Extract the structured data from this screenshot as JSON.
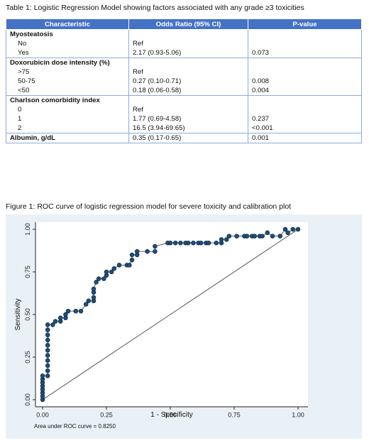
{
  "table": {
    "caption": "Table 1: Logistic Regression Model showing factors associated with any grade ≥3 toxicities",
    "headers": [
      "Characteristic",
      "Odds Ratio (95% CI)",
      "P-value"
    ],
    "rows": [
      {
        "label": "Myosteatosis",
        "heading": true,
        "or": "",
        "p": ""
      },
      {
        "label": "No",
        "heading": false,
        "or": "Ref",
        "p": ""
      },
      {
        "label": "Yes",
        "heading": false,
        "or": "2.17 (0.93-5.06)",
        "p": "0.073"
      },
      {
        "label": "Doxorubicin dose intensity (%)",
        "heading": true,
        "or": "",
        "p": ""
      },
      {
        "label": ">75",
        "heading": false,
        "or": "Ref",
        "p": ""
      },
      {
        "label": "50-75",
        "heading": false,
        "or": "0.27 (0.10-0.71)",
        "p": "0.008"
      },
      {
        "label": "<50",
        "heading": false,
        "or": "0.18 (0.06-0.58)",
        "p": "0.004"
      },
      {
        "label": "Charlson comorbidity index",
        "heading": true,
        "or": "",
        "p": ""
      },
      {
        "label": "0",
        "heading": false,
        "or": "Ref",
        "p": ""
      },
      {
        "label": "1",
        "heading": false,
        "or": "1.77 (0.69-4.58)",
        "p": "0.237"
      },
      {
        "label": "2",
        "heading": false,
        "or": "16.5 (3.94-69.65)",
        "p": "<0.001"
      },
      {
        "label": "Albumin, g/dL",
        "heading": true,
        "or": "0.35 (0.17-0.65)",
        "p": "0.001"
      }
    ]
  },
  "figure": {
    "caption": "Figure 1: ROC curve of logistic regression model for severe toxicity and calibration plot"
  },
  "chart_data": {
    "type": "line",
    "xlabel": "1 - Specificity",
    "ylabel": "Sensitivity",
    "xlim": [
      0,
      1
    ],
    "ylim": [
      0,
      1
    ],
    "x_ticks": [
      "0.00",
      "0.25",
      "0.50",
      "0.75",
      "1.00"
    ],
    "y_ticks": [
      "0.00",
      "0.25",
      "0.50",
      "0.75",
      "1.00"
    ],
    "grid": false,
    "annotation": "Area under ROC curve = 0.8250",
    "colors": {
      "points": "#1f4e79",
      "point_outline": "#0b2540",
      "line": "#444444",
      "panel": "#eaf1f6"
    },
    "reference_line": [
      [
        0,
        0
      ],
      [
        1,
        1
      ]
    ],
    "roc_points": [
      [
        0,
        0
      ],
      [
        0,
        0.02
      ],
      [
        0,
        0.04
      ],
      [
        0,
        0.06
      ],
      [
        0,
        0.08
      ],
      [
        0,
        0.1
      ],
      [
        0,
        0.12
      ],
      [
        0,
        0.14
      ],
      [
        0.02,
        0.14
      ],
      [
        0.02,
        0.17
      ],
      [
        0.02,
        0.2
      ],
      [
        0.02,
        0.23
      ],
      [
        0.02,
        0.26
      ],
      [
        0.02,
        0.29
      ],
      [
        0.02,
        0.32
      ],
      [
        0.02,
        0.35
      ],
      [
        0.02,
        0.38
      ],
      [
        0.02,
        0.41
      ],
      [
        0.02,
        0.44
      ],
      [
        0.04,
        0.44
      ],
      [
        0.05,
        0.46
      ],
      [
        0.07,
        0.46
      ],
      [
        0.07,
        0.48
      ],
      [
        0.09,
        0.48
      ],
      [
        0.09,
        0.5
      ],
      [
        0.1,
        0.52
      ],
      [
        0.13,
        0.52
      ],
      [
        0.15,
        0.52
      ],
      [
        0.17,
        0.56
      ],
      [
        0.18,
        0.58
      ],
      [
        0.2,
        0.58
      ],
      [
        0.2,
        0.6
      ],
      [
        0.2,
        0.63
      ],
      [
        0.2,
        0.65
      ],
      [
        0.21,
        0.69
      ],
      [
        0.22,
        0.71
      ],
      [
        0.24,
        0.71
      ],
      [
        0.25,
        0.73
      ],
      [
        0.25,
        0.75
      ],
      [
        0.27,
        0.75
      ],
      [
        0.28,
        0.77
      ],
      [
        0.3,
        0.79
      ],
      [
        0.33,
        0.79
      ],
      [
        0.34,
        0.79
      ],
      [
        0.35,
        0.82
      ],
      [
        0.35,
        0.85
      ],
      [
        0.37,
        0.85
      ],
      [
        0.37,
        0.87
      ],
      [
        0.41,
        0.87
      ],
      [
        0.44,
        0.87
      ],
      [
        0.44,
        0.9
      ],
      [
        0.49,
        0.92
      ],
      [
        0.5,
        0.92
      ],
      [
        0.52,
        0.92
      ],
      [
        0.54,
        0.92
      ],
      [
        0.56,
        0.92
      ],
      [
        0.57,
        0.92
      ],
      [
        0.59,
        0.92
      ],
      [
        0.61,
        0.92
      ],
      [
        0.62,
        0.92
      ],
      [
        0.64,
        0.92
      ],
      [
        0.65,
        0.92
      ],
      [
        0.68,
        0.92
      ],
      [
        0.7,
        0.92
      ],
      [
        0.7,
        0.94
      ],
      [
        0.72,
        0.94
      ],
      [
        0.73,
        0.96
      ],
      [
        0.76,
        0.96
      ],
      [
        0.79,
        0.96
      ],
      [
        0.8,
        0.96
      ],
      [
        0.82,
        0.96
      ],
      [
        0.83,
        0.96
      ],
      [
        0.85,
        0.96
      ],
      [
        0.86,
        0.96
      ],
      [
        0.88,
        0.98
      ],
      [
        0.9,
        0.96
      ],
      [
        0.93,
        0.96
      ],
      [
        0.95,
        1
      ],
      [
        0.96,
        0.98
      ],
      [
        0.98,
        1
      ],
      [
        1,
        1
      ]
    ]
  }
}
